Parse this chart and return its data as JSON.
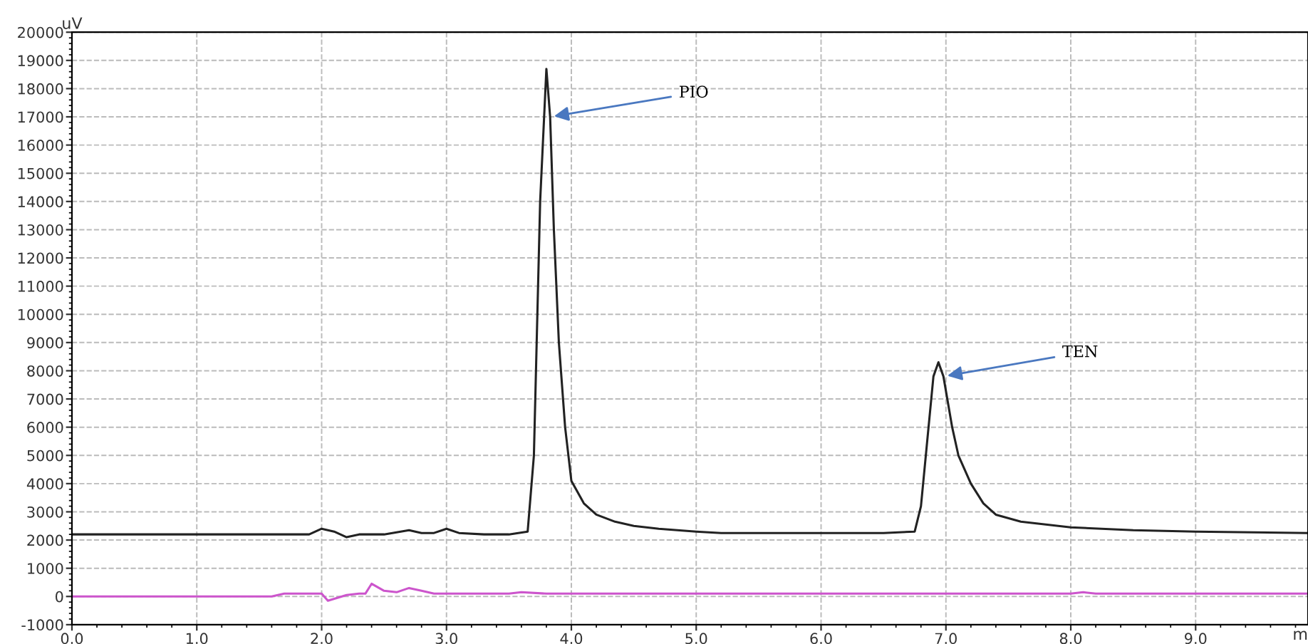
{
  "chart_data": {
    "type": "line",
    "xlabel": "m",
    "ylabel": "uV",
    "xlim": [
      0,
      9.9
    ],
    "xticks": [
      {
        "value": 0,
        "label": "0.0"
      },
      {
        "value": 1,
        "label": "1.0"
      },
      {
        "value": 2,
        "label": "2.0"
      },
      {
        "value": 3,
        "label": "3.0"
      },
      {
        "value": 4,
        "label": "4.0"
      },
      {
        "value": 5,
        "label": "5.0"
      },
      {
        "value": 6,
        "label": "6.0"
      },
      {
        "value": 7,
        "label": "7.0"
      },
      {
        "value": 8,
        "label": "8.0"
      },
      {
        "value": 9,
        "label": "9.0"
      }
    ],
    "ylim": [
      -1000,
      20000
    ],
    "yticks": [
      -1000,
      0,
      1000,
      2000,
      3000,
      4000,
      5000,
      6000,
      7000,
      8000,
      9000,
      10000,
      11000,
      12000,
      13000,
      14000,
      15000,
      16000,
      17000,
      18000,
      19000,
      20000
    ],
    "grid": true,
    "marker": "none",
    "line_style": "solid",
    "series": [
      {
        "color": "#222222",
        "x": [
          0,
          1.9,
          2.0,
          2.1,
          2.2,
          2.3,
          2.5,
          2.7,
          2.8,
          2.9,
          3.0,
          3.1,
          3.3,
          3.5,
          3.65,
          3.7,
          3.75,
          3.8,
          3.83,
          3.86,
          3.9,
          3.95,
          4.0,
          4.1,
          4.2,
          4.35,
          4.5,
          4.7,
          5.0,
          5.2,
          5.5,
          6.0,
          6.5,
          6.75,
          6.8,
          6.85,
          6.9,
          6.94,
          6.98,
          7.05,
          7.1,
          7.2,
          7.3,
          7.4,
          7.6,
          8.0,
          8.5,
          9.0,
          9.9
        ],
        "values": [
          2200,
          2200,
          2400,
          2300,
          2100,
          2200,
          2200,
          2350,
          2250,
          2250,
          2400,
          2250,
          2200,
          2200,
          2300,
          5000,
          14000,
          18700,
          17000,
          13000,
          9000,
          6000,
          4100,
          3300,
          2900,
          2650,
          2500,
          2400,
          2300,
          2250,
          2250,
          2250,
          2250,
          2300,
          3200,
          5500,
          7800,
          8300,
          7800,
          6000,
          5000,
          4000,
          3300,
          2900,
          2650,
          2450,
          2350,
          2300,
          2250
        ]
      },
      {
        "color": "#cc55cc",
        "x": [
          0,
          1.6,
          1.7,
          2.0,
          2.05,
          2.2,
          2.3,
          2.35,
          2.4,
          2.5,
          2.6,
          2.7,
          2.8,
          2.9,
          3.0,
          3.5,
          3.6,
          3.8,
          4.5,
          8.0,
          8.1,
          8.2,
          9.9
        ],
        "values": [
          0,
          0,
          100,
          100,
          -150,
          50,
          100,
          100,
          450,
          200,
          150,
          300,
          200,
          100,
          100,
          100,
          150,
          100,
          100,
          100,
          150,
          100,
          100
        ]
      }
    ],
    "annotations": [
      {
        "text": "PIO",
        "x": 3.83,
        "y": 17000
      },
      {
        "text": "TEN",
        "x": 6.98,
        "y": 7800
      }
    ]
  }
}
